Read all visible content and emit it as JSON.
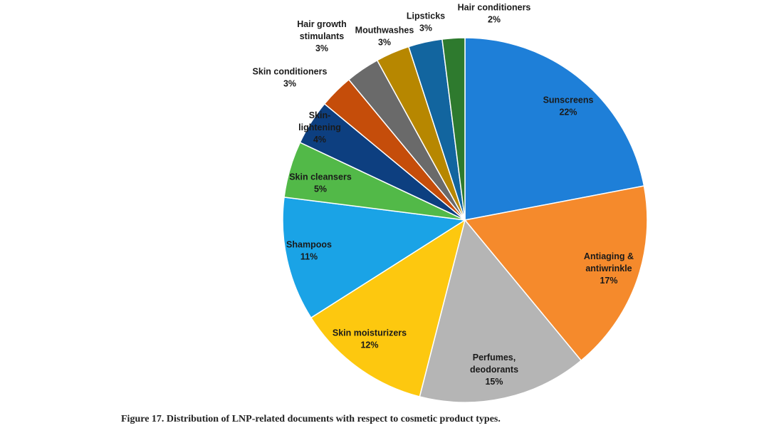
{
  "chart_data": {
    "type": "pie",
    "title": "",
    "slices": [
      {
        "label": [
          "Sunscreens"
        ],
        "value": 22,
        "value_label": "22%",
        "color": "#1e7fd8"
      },
      {
        "label": [
          "Antiaging &",
          "antiwrinkle"
        ],
        "value": 17,
        "value_label": "17%",
        "color": "#f58a2c"
      },
      {
        "label": [
          "Perfumes,",
          "deodorants"
        ],
        "value": 15,
        "value_label": "15%",
        "color": "#b5b5b5"
      },
      {
        "label": [
          "Skin moisturizers"
        ],
        "value": 12,
        "value_label": "12%",
        "color": "#fdc80f"
      },
      {
        "label": [
          "Shampoos"
        ],
        "value": 11,
        "value_label": "11%",
        "color": "#1aa3e6"
      },
      {
        "label": [
          "Skin cleansers"
        ],
        "value": 5,
        "value_label": "5%",
        "color": "#52b948"
      },
      {
        "label": [
          "Skin-",
          "lightening"
        ],
        "value": 4,
        "value_label": "4%",
        "color": "#0d3f80"
      },
      {
        "label": [
          "Skin conditioners"
        ],
        "value": 3,
        "value_label": "3%",
        "color": "#c54d0a"
      },
      {
        "label": [
          "Hair growth",
          "stimulants"
        ],
        "value": 3,
        "value_label": "3%",
        "color": "#6a6a6a"
      },
      {
        "label": [
          "Mouthwashes"
        ],
        "value": 3,
        "value_label": "3%",
        "color": "#b78700"
      },
      {
        "label": [
          "Lipsticks"
        ],
        "value": 3,
        "value_label": "3%",
        "color": "#12659f"
      },
      {
        "label": [
          "Hair conditioners"
        ],
        "value": 2,
        "value_label": "2%",
        "color": "#2e7a2e"
      }
    ]
  },
  "caption": "Figure 17. Distribution of LNP-related documents with respect to cosmetic product types."
}
